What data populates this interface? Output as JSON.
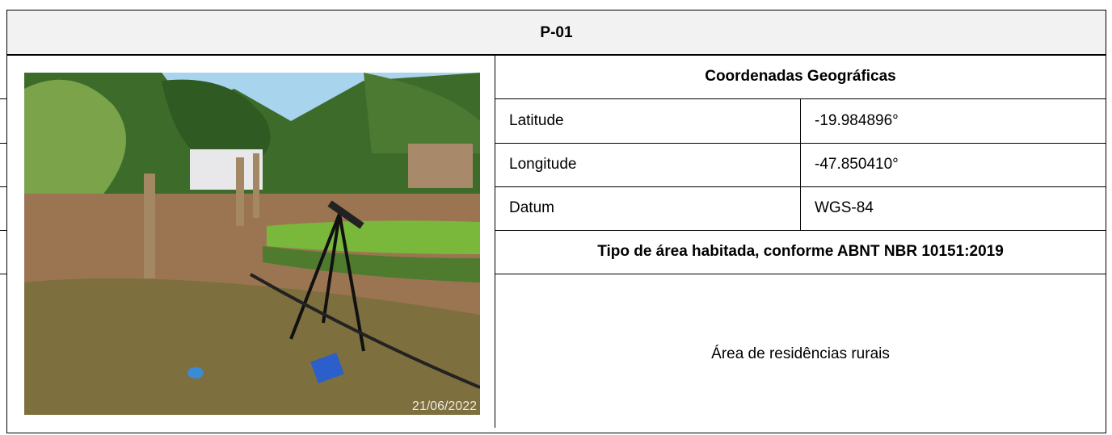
{
  "header": {
    "title": "P-01"
  },
  "photo": {
    "timestamp": "21/06/2022"
  },
  "table": {
    "section_title": "Coordenadas Geográficas",
    "rows": [
      [
        "Latitude",
        "-19.984896°"
      ],
      [
        "Longitude",
        "-47.850410°"
      ],
      [
        "Datum",
        "WGS-84"
      ]
    ],
    "area_title": "Tipo de área habitada, conforme ABNT NBR 10151:2019",
    "area_value": "Área de residências rurais"
  }
}
